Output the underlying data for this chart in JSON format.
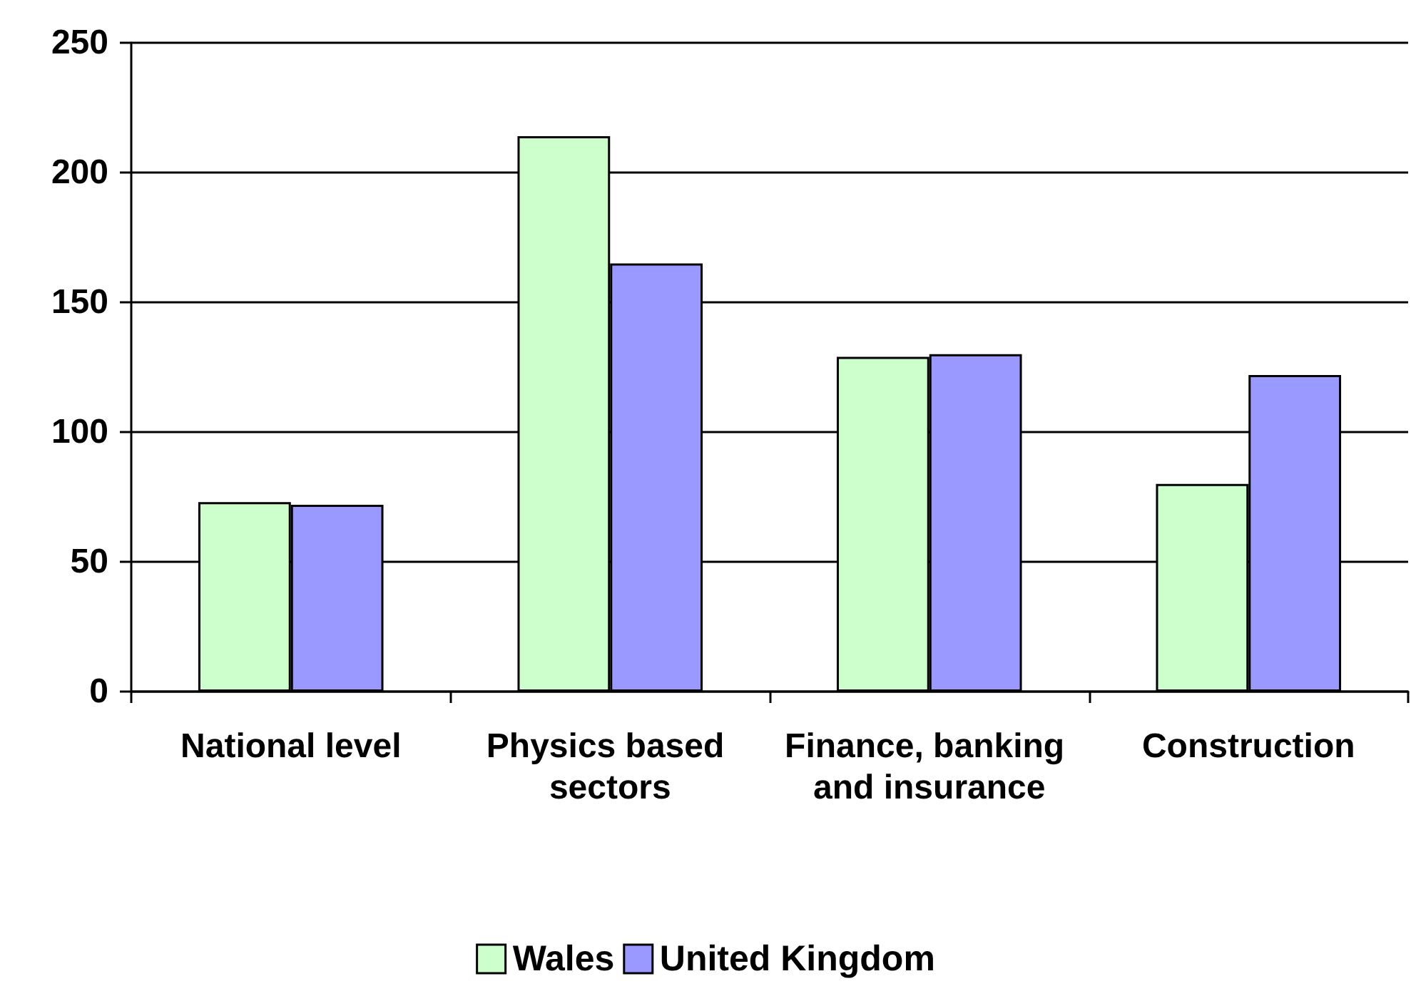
{
  "chart_data": {
    "type": "bar",
    "categories": [
      "National level",
      "Physics based sectors",
      "Finance, banking and insurance",
      "Construction"
    ],
    "series": [
      {
        "name": "Wales",
        "color": "#ccffcc",
        "values": [
          73,
          214,
          129,
          80
        ]
      },
      {
        "name": "United Kingdom",
        "color": "#9999ff",
        "values": [
          72,
          165,
          130,
          122
        ]
      }
    ],
    "ylim": [
      0,
      250
    ],
    "yticks": [
      0,
      50,
      100,
      150,
      200,
      250
    ],
    "grid": "y",
    "legend": "bottom"
  }
}
